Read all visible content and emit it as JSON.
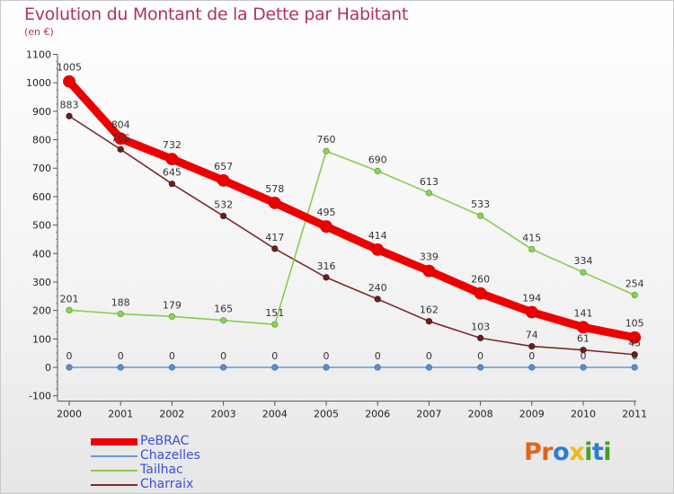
{
  "title": "Evolution du Montant de la Dette par Habitant",
  "subtitle": "(en €)",
  "brand": {
    "letters": [
      "P",
      "r",
      "o",
      "x",
      "i",
      "t",
      "i"
    ],
    "colors": [
      "#e0651a",
      "#e0651a",
      "#2a7fd4",
      "#f2b71e",
      "#4a9b2c",
      "#2a7fd4",
      "#4a9b2c"
    ]
  },
  "chart_data": {
    "type": "line",
    "title": "Evolution du Montant de la Dette par Habitant",
    "subtitle": "(en €)",
    "x": [
      "2000",
      "2001",
      "2002",
      "2003",
      "2004",
      "2005",
      "2006",
      "2007",
      "2008",
      "2009",
      "2010",
      "2011"
    ],
    "ylim": [
      -100,
      1100
    ],
    "yticks": [
      -100,
      0,
      100,
      200,
      300,
      400,
      500,
      600,
      700,
      800,
      900,
      1000,
      1100
    ],
    "grid": false,
    "legend": "bottom-left",
    "series": [
      {
        "name": "PeBRAC",
        "color": "#ee0000",
        "values": [
          1005,
          804,
          732,
          657,
          578,
          495,
          414,
          339,
          260,
          194,
          141,
          105
        ]
      },
      {
        "name": "Chazelles",
        "color": "#6699cc",
        "values": [
          0,
          0,
          0,
          0,
          0,
          0,
          0,
          0,
          0,
          0,
          0,
          0
        ]
      },
      {
        "name": "Tailhac",
        "color": "#88cc55",
        "values": [
          201,
          188,
          179,
          165,
          151,
          760,
          690,
          613,
          533,
          415,
          334,
          254
        ]
      },
      {
        "name": "Charraix",
        "color": "#7a2a2a",
        "values": [
          883,
          766,
          645,
          532,
          417,
          316,
          240,
          162,
          103,
          74,
          61,
          45
        ]
      }
    ]
  }
}
